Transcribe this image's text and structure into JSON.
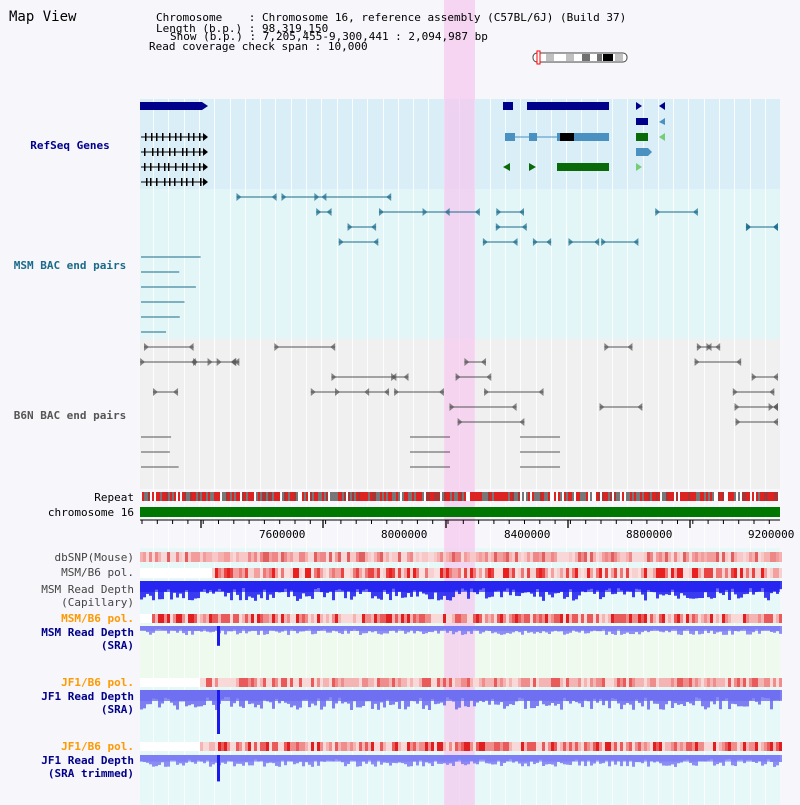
{
  "app_title": "Map View",
  "info": {
    "chromosome_label": "Chromosome",
    "chromosome_value": "Chromosome 16, reference assembly (C57BL/6J) (Build 37)",
    "length_label": "Length (b.p.)",
    "length_value": "98,319,150",
    "show_label": "Show (b.p.)",
    "show_value": "7,205,455-9,300,441 : 2,094,987 bp",
    "coverage_label": "Read coverage check span",
    "coverage_value": "10,000"
  },
  "tracks": {
    "refseq": "RefSeq Genes",
    "msm_bac": "MSM BAC end pairs",
    "b6n_bac": "B6N BAC end pairs",
    "repeat": "Repeat",
    "chromosome": "chromosome 16",
    "dbsnp": "dbSNP(Mouse)",
    "msm_b6_pol_1": "MSM/B6 pol.",
    "msm_read_depth_cap_1": "MSM Read Depth",
    "msm_read_depth_cap_2": "(Capillary)",
    "msm_b6_pol_2": "MSM/B6 pol.",
    "msm_read_depth_sra_1": "MSM Read Depth",
    "msm_read_depth_sra_2": "(SRA)",
    "jf1_b6_pol_1": "JF1/B6 pol.",
    "jf1_read_depth_sra_1": "JF1 Read Depth",
    "jf1_read_depth_sra_2": "(SRA)",
    "jf1_b6_pol_2": "JF1/B6 pol.",
    "jf1_read_depth_trim_1": "JF1 Read Depth",
    "jf1_read_depth_trim_2": "(SRA trimmed)"
  },
  "axis": {
    "ticks": [
      "7600000",
      "8000000",
      "8400000",
      "8800000",
      "9200000"
    ]
  },
  "colors": {
    "refseq": "#00008b",
    "msm_bac": "#1a6a8a",
    "b6n_bac": "#555555",
    "jf1": "#ff9900",
    "chromosome": "#007700",
    "highlight": "#f5c8ee"
  }
}
